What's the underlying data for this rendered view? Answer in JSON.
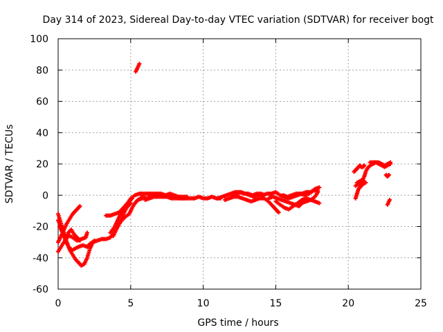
{
  "chart_data": {
    "type": "scatter",
    "title": "Day 314 of 2023, Sidereal Day-to-day VTEC variation (SDTVAR) for receiver bogt",
    "xlabel": "GPS time / hours",
    "ylabel": "SDTVAR / TECUs",
    "xlim": [
      0,
      25
    ],
    "ylim": [
      -60,
      100
    ],
    "xticks": [
      0,
      5,
      10,
      15,
      20,
      25
    ],
    "yticks": [
      -60,
      -40,
      -20,
      0,
      20,
      40,
      60,
      80,
      100
    ],
    "grid": true,
    "marker": "plus",
    "series": [
      {
        "name": "SDTVAR",
        "color": "#ff0000",
        "segments": [
          [
            [
              0.0,
              -12
            ],
            [
              0.2,
              -18
            ],
            [
              0.4,
              -24
            ],
            [
              0.6,
              -30
            ],
            [
              0.8,
              -35
            ],
            [
              1.0,
              -38
            ],
            [
              1.2,
              -41
            ],
            [
              1.4,
              -43
            ],
            [
              1.6,
              -45
            ],
            [
              1.8,
              -44
            ],
            [
              2.0,
              -40
            ],
            [
              2.2,
              -34
            ],
            [
              2.4,
              -30
            ],
            [
              2.7,
              -29
            ],
            [
              3.0,
              -28
            ],
            [
              3.3,
              -28
            ],
            [
              3.6,
              -27
            ],
            [
              4.0,
              -22
            ],
            [
              4.3,
              -17
            ],
            [
              4.6,
              -14
            ],
            [
              4.9,
              -12
            ],
            [
              5.1,
              -8
            ],
            [
              5.3,
              -5
            ],
            [
              5.5,
              -3
            ],
            [
              5.8,
              -2
            ]
          ],
          [
            [
              0.0,
              -30
            ],
            [
              0.2,
              -26
            ],
            [
              0.4,
              -22
            ],
            [
              0.6,
              -18
            ],
            [
              0.8,
              -15
            ],
            [
              1.0,
              -12
            ],
            [
              1.2,
              -10
            ],
            [
              1.4,
              -8
            ],
            [
              1.5,
              -7
            ]
          ],
          [
            [
              0.0,
              -16
            ],
            [
              0.2,
              -20
            ],
            [
              0.4,
              -26
            ],
            [
              0.6,
              -31
            ],
            [
              0.8,
              -34
            ],
            [
              1.0,
              -35
            ],
            [
              1.2,
              -34
            ],
            [
              1.4,
              -33
            ],
            [
              1.7,
              -32
            ],
            [
              2.0,
              -33
            ],
            [
              2.2,
              -31
            ],
            [
              2.5,
              -29
            ]
          ],
          [
            [
              0.0,
              -36
            ],
            [
              0.2,
              -33
            ],
            [
              0.4,
              -30
            ],
            [
              0.6,
              -27
            ],
            [
              0.8,
              -26
            ],
            [
              1.0,
              -27
            ],
            [
              1.3,
              -29
            ],
            [
              1.6,
              -28
            ],
            [
              1.9,
              -27
            ],
            [
              2.0,
              -24
            ]
          ],
          [
            [
              0.1,
              -20
            ],
            [
              0.3,
              -24
            ],
            [
              0.5,
              -28
            ],
            [
              0.7,
              -24
            ],
            [
              0.9,
              -22
            ],
            [
              1.1,
              -25
            ],
            [
              1.3,
              -27
            ],
            [
              1.5,
              -29
            ]
          ],
          [
            [
              3.3,
              -13
            ],
            [
              3.6,
              -13
            ],
            [
              3.9,
              -12
            ],
            [
              4.2,
              -11
            ],
            [
              4.5,
              -8
            ],
            [
              4.8,
              -5
            ],
            [
              5.0,
              -2
            ],
            [
              5.3,
              0
            ],
            [
              5.6,
              1
            ]
          ],
          [
            [
              3.6,
              -24
            ],
            [
              3.9,
              -20
            ],
            [
              4.1,
              -16
            ],
            [
              4.3,
              -12
            ],
            [
              4.5,
              -9
            ],
            [
              4.7,
              -6
            ],
            [
              4.9,
              -4
            ],
            [
              5.1,
              -2
            ]
          ],
          [
            [
              3.8,
              -26
            ],
            [
              4.0,
              -22
            ],
            [
              4.2,
              -18
            ],
            [
              4.4,
              -14
            ],
            [
              4.6,
              -10
            ],
            [
              4.8,
              -7
            ],
            [
              5.0,
              -5
            ]
          ],
          [
            [
              5.35,
              79
            ],
            [
              5.45,
              81
            ],
            [
              5.55,
              83
            ],
            [
              5.6,
              84
            ]
          ],
          [
            [
              5.5,
              -3
            ],
            [
              5.8,
              -1
            ],
            [
              6.1,
              -2
            ],
            [
              6.4,
              -1
            ],
            [
              6.7,
              0
            ],
            [
              7.0,
              0
            ],
            [
              7.3,
              0
            ],
            [
              7.6,
              -1
            ],
            [
              7.9,
              -1
            ],
            [
              8.2,
              -1
            ],
            [
              8.5,
              -2
            ],
            [
              8.8,
              -2
            ],
            [
              9.1,
              -2
            ],
            [
              9.4,
              -2
            ],
            [
              9.7,
              -1
            ],
            [
              10.0,
              -2
            ],
            [
              10.3,
              -2
            ],
            [
              10.6,
              -1
            ],
            [
              10.9,
              -2
            ],
            [
              11.2,
              -2
            ]
          ],
          [
            [
              5.6,
              1
            ],
            [
              5.9,
              1
            ],
            [
              6.2,
              1
            ],
            [
              6.5,
              1
            ],
            [
              6.8,
              1
            ],
            [
              7.1,
              1
            ],
            [
              7.4,
              0
            ],
            [
              7.7,
              1
            ],
            [
              8.0,
              0
            ],
            [
              8.3,
              -1
            ],
            [
              8.6,
              -1
            ],
            [
              8.9,
              -1
            ]
          ],
          [
            [
              6.0,
              -3
            ],
            [
              6.3,
              -2
            ],
            [
              6.6,
              -1
            ],
            [
              6.9,
              -1
            ],
            [
              7.2,
              -1
            ],
            [
              7.5,
              -1
            ],
            [
              7.8,
              -2
            ],
            [
              8.1,
              -2
            ],
            [
              8.4,
              -2
            ],
            [
              8.7,
              -2
            ]
          ],
          [
            [
              11.0,
              -2
            ],
            [
              11.3,
              -1
            ],
            [
              11.6,
              0
            ],
            [
              11.9,
              1
            ],
            [
              12.2,
              2
            ],
            [
              12.5,
              2
            ],
            [
              12.8,
              1
            ],
            [
              13.1,
              1
            ],
            [
              13.4,
              0
            ],
            [
              13.7,
              1
            ],
            [
              14.0,
              1
            ],
            [
              14.2,
              0
            ]
          ],
          [
            [
              11.5,
              -3
            ],
            [
              11.8,
              -2
            ],
            [
              12.1,
              -1
            ],
            [
              12.4,
              -1
            ],
            [
              12.7,
              -2
            ],
            [
              13.0,
              -3
            ],
            [
              13.3,
              -4
            ],
            [
              13.6,
              -3
            ],
            [
              13.9,
              -2
            ],
            [
              14.2,
              -2
            ],
            [
              14.5,
              -4
            ],
            [
              14.8,
              -7
            ],
            [
              15.0,
              -9
            ],
            [
              15.2,
              -11
            ]
          ],
          [
            [
              12.0,
              0
            ],
            [
              12.3,
              1
            ],
            [
              12.6,
              2
            ],
            [
              12.9,
              1
            ],
            [
              13.2,
              0
            ],
            [
              13.5,
              -1
            ],
            [
              13.8,
              0
            ],
            [
              14.1,
              0
            ],
            [
              14.4,
              1
            ],
            [
              14.7,
              1
            ]
          ],
          [
            [
              14.7,
              1
            ],
            [
              15.0,
              2
            ],
            [
              15.3,
              0
            ],
            [
              15.6,
              -1
            ],
            [
              15.9,
              -2
            ],
            [
              16.2,
              -1
            ],
            [
              16.5,
              0
            ],
            [
              16.8,
              1
            ],
            [
              17.1,
              2
            ],
            [
              17.4,
              2
            ],
            [
              17.7,
              4
            ],
            [
              18.0,
              5
            ]
          ],
          [
            [
              14.5,
              -2
            ],
            [
              14.8,
              -1
            ],
            [
              15.1,
              -2
            ],
            [
              15.4,
              -3
            ],
            [
              15.7,
              -4
            ],
            [
              16.0,
              -5
            ],
            [
              16.3,
              -6
            ],
            [
              16.6,
              -7
            ],
            [
              16.8,
              -5
            ],
            [
              17.1,
              -4
            ],
            [
              17.4,
              -3
            ],
            [
              17.7,
              -4
            ],
            [
              18.0,
              -5
            ]
          ],
          [
            [
              15.0,
              -4
            ],
            [
              15.3,
              -6
            ],
            [
              15.6,
              -8
            ],
            [
              15.9,
              -9
            ],
            [
              16.2,
              -7
            ],
            [
              16.5,
              -5
            ],
            [
              16.8,
              -3
            ],
            [
              17.1,
              -2
            ],
            [
              17.4,
              -3
            ],
            [
              17.7,
              -1
            ],
            [
              17.9,
              2
            ]
          ],
          [
            [
              15.5,
              0
            ],
            [
              15.8,
              -1
            ],
            [
              16.1,
              0
            ],
            [
              16.4,
              1
            ],
            [
              16.7,
              1
            ],
            [
              17.0,
              0
            ],
            [
              17.3,
              1
            ],
            [
              17.6,
              3
            ],
            [
              17.9,
              3
            ]
          ],
          [
            [
              20.4,
              15
            ],
            [
              20.5,
              16
            ],
            [
              20.6,
              17
            ],
            [
              20.7,
              18
            ],
            [
              20.8,
              19
            ],
            [
              20.9,
              18
            ],
            [
              21.0,
              18
            ],
            [
              21.1,
              19
            ]
          ],
          [
            [
              20.6,
              8
            ],
            [
              20.8,
              9
            ],
            [
              21.0,
              10
            ],
            [
              21.1,
              12
            ],
            [
              21.2,
              15
            ],
            [
              21.3,
              17
            ],
            [
              21.5,
              19
            ],
            [
              21.7,
              20
            ],
            [
              21.9,
              21
            ],
            [
              22.1,
              20
            ],
            [
              22.3,
              19
            ],
            [
              22.5,
              18
            ],
            [
              22.7,
              19
            ],
            [
              22.9,
              20
            ]
          ],
          [
            [
              20.5,
              -2
            ],
            [
              20.6,
              1
            ],
            [
              20.7,
              4
            ],
            [
              20.9,
              6
            ],
            [
              21.0,
              7
            ],
            [
              21.2,
              8
            ]
          ],
          [
            [
              20.5,
              6
            ],
            [
              20.7,
              7
            ],
            [
              20.9,
              8
            ],
            [
              21.1,
              9
            ]
          ],
          [
            [
              21.5,
              21
            ],
            [
              21.7,
              21
            ],
            [
              21.9,
              21
            ],
            [
              22.1,
              21
            ],
            [
              22.3,
              20
            ],
            [
              22.5,
              19
            ],
            [
              22.7,
              20
            ],
            [
              22.9,
              21
            ]
          ],
          [
            [
              22.7,
              -6
            ],
            [
              22.75,
              -5
            ],
            [
              22.8,
              -4
            ],
            [
              22.85,
              -3
            ]
          ],
          [
            [
              22.6,
              13
            ],
            [
              22.7,
              12
            ],
            [
              22.8,
              13
            ]
          ]
        ]
      }
    ]
  }
}
